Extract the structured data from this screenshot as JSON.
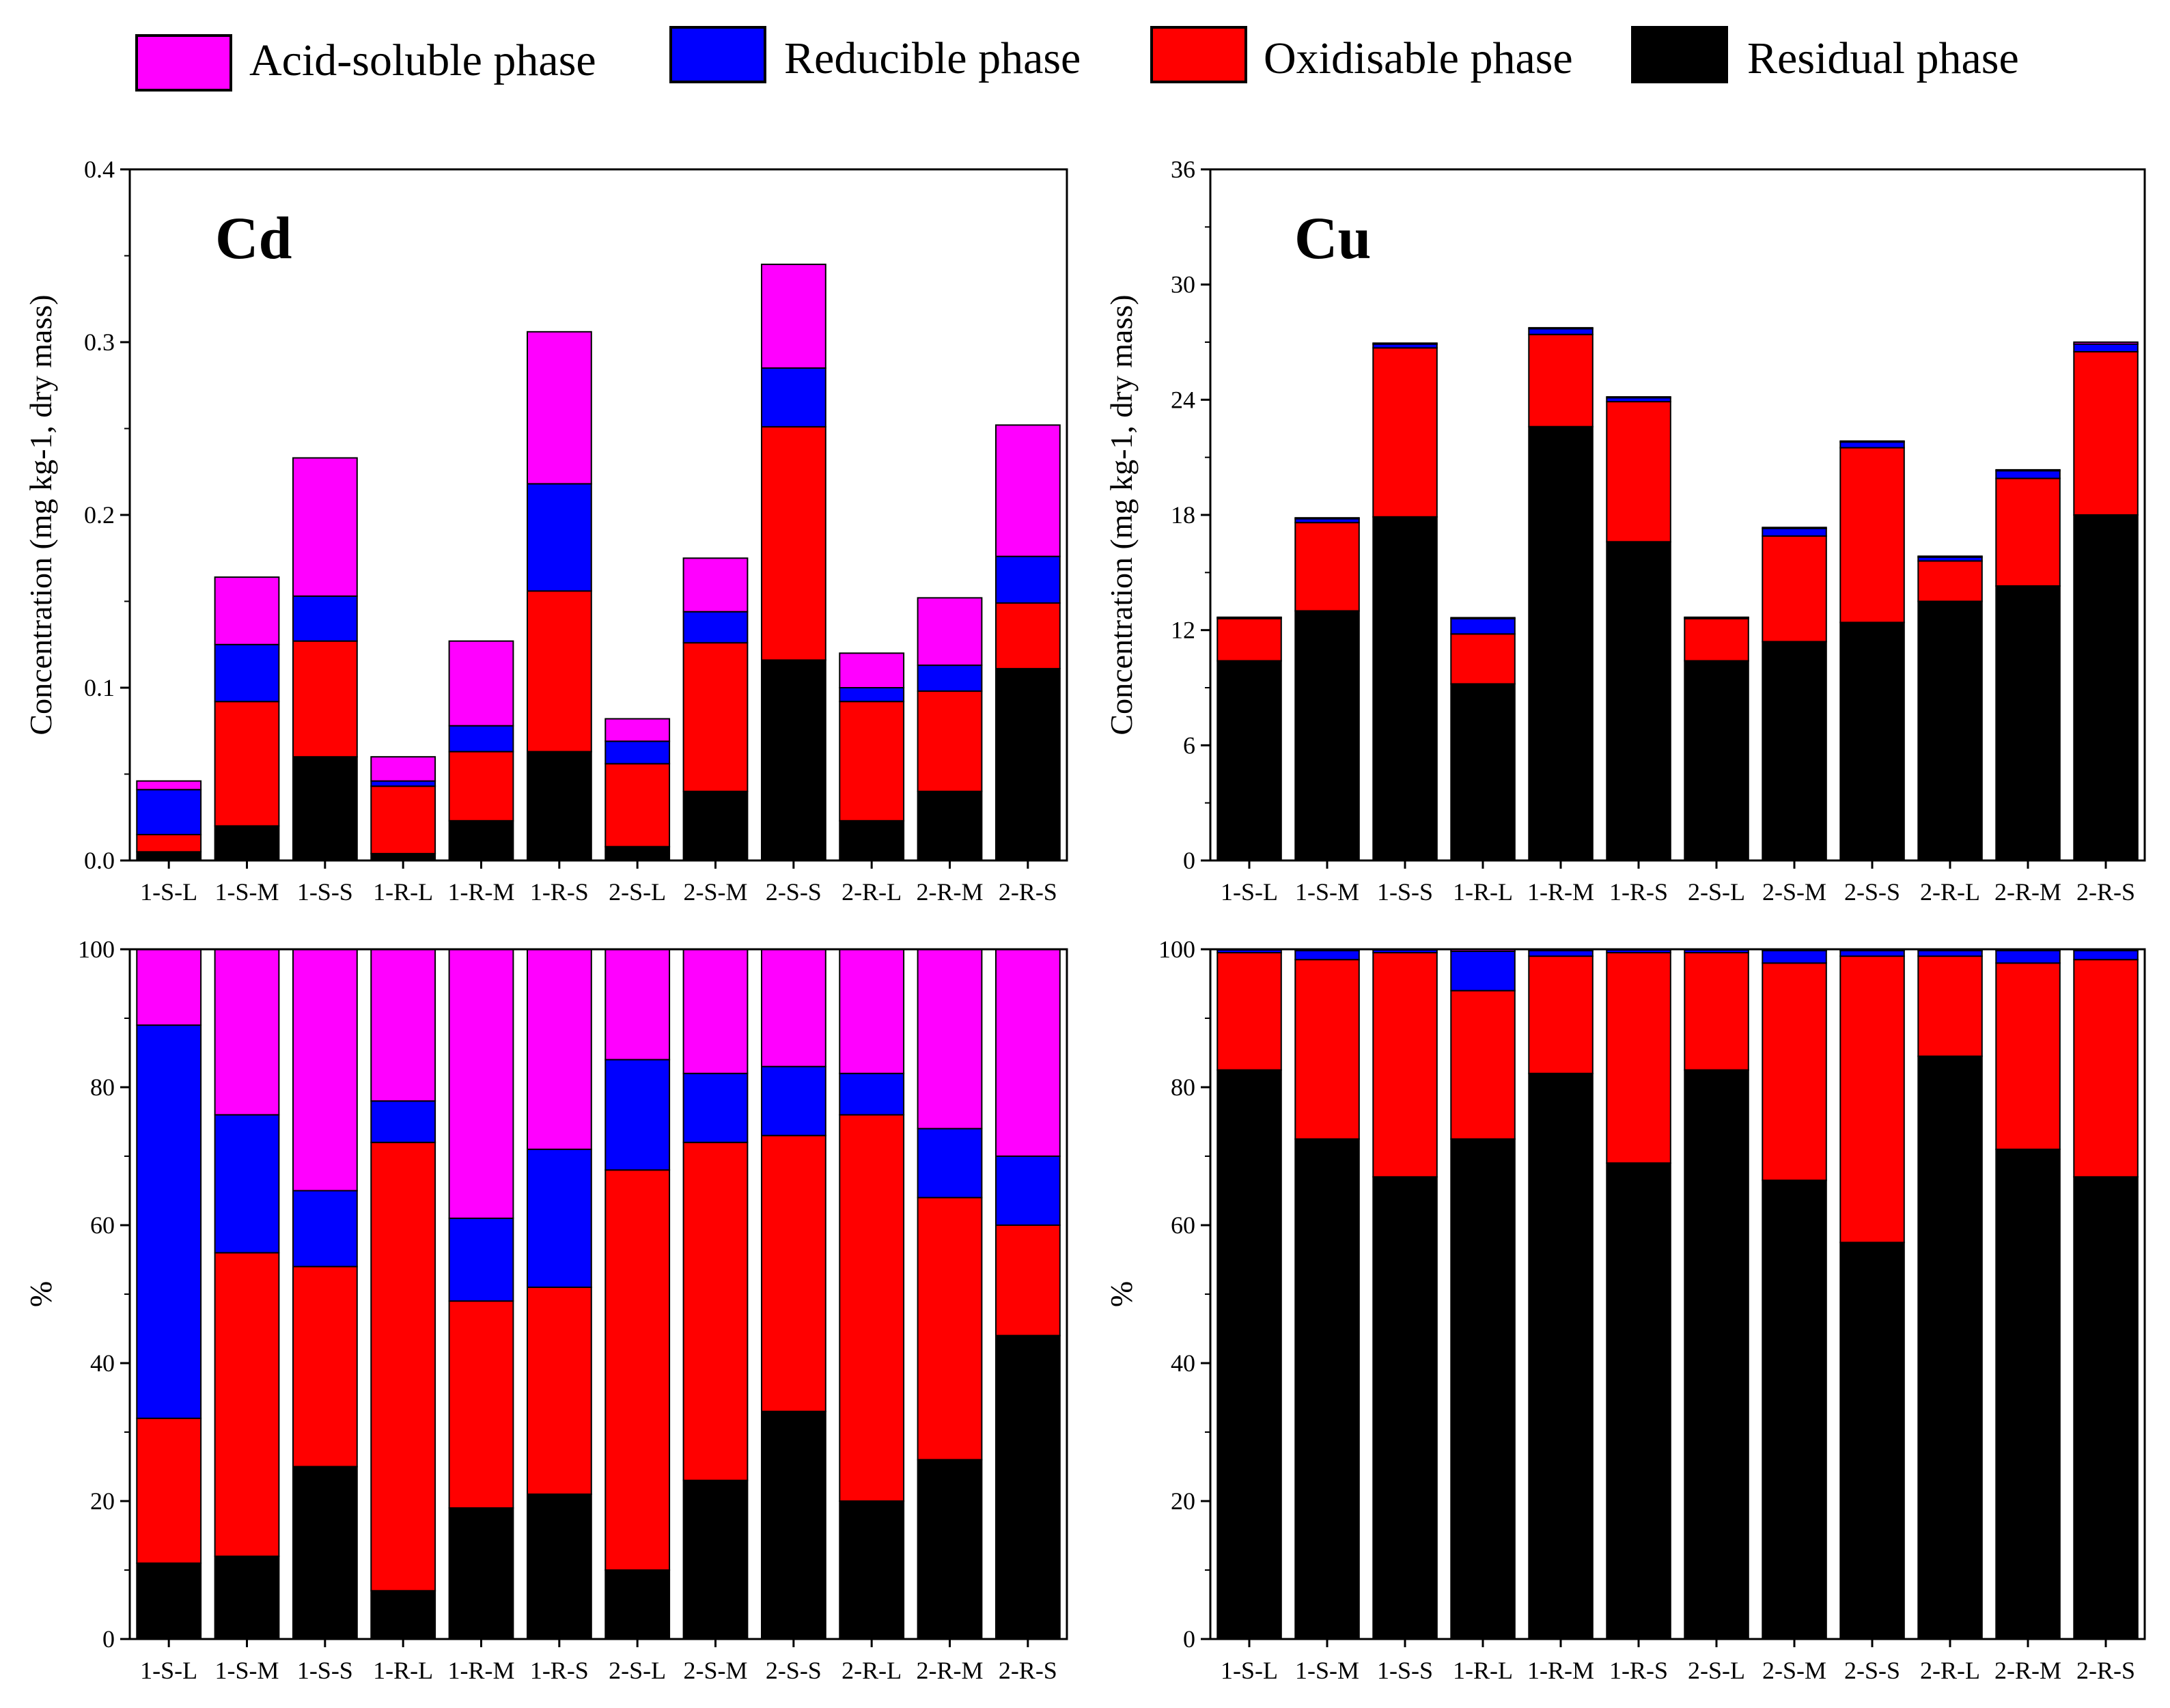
{
  "legend": [
    {
      "key": "acid",
      "label": "Acid-soluble phase",
      "color": "#ff00ff"
    },
    {
      "key": "reducible",
      "label": "Reducible phase",
      "color": "#0000ff"
    },
    {
      "key": "oxidisable",
      "label": "Oxidisable phase",
      "color": "#ff0000"
    },
    {
      "key": "residual",
      "label": "Residual phase",
      "color": "#000000"
    }
  ],
  "chart_data": [
    {
      "id": "cd-conc",
      "type": "bar",
      "stacked": true,
      "title": "Cd",
      "ylabel": "Concentration (mg kg-1, dry mass)",
      "ylim": [
        0,
        0.4
      ],
      "yticks": [
        "0.0",
        "0.1",
        "0.2",
        "0.3",
        "0.4"
      ],
      "categories": [
        "1-S-L",
        "1-S-M",
        "1-S-S",
        "1-R-L",
        "1-R-M",
        "1-R-S",
        "2-S-L",
        "2-S-M",
        "2-S-S",
        "2-R-L",
        "2-R-M",
        "2-R-S"
      ],
      "series": [
        {
          "name": "Residual phase",
          "values": [
            0.005,
            0.02,
            0.06,
            0.004,
            0.023,
            0.063,
            0.008,
            0.04,
            0.116,
            0.023,
            0.04,
            0.111
          ]
        },
        {
          "name": "Oxidisable phase",
          "values": [
            0.01,
            0.072,
            0.067,
            0.039,
            0.04,
            0.093,
            0.048,
            0.086,
            0.135,
            0.069,
            0.058,
            0.038
          ]
        },
        {
          "name": "Reducible phase",
          "values": [
            0.026,
            0.033,
            0.026,
            0.003,
            0.015,
            0.062,
            0.013,
            0.018,
            0.034,
            0.008,
            0.015,
            0.027
          ]
        },
        {
          "name": "Acid-soluble phase",
          "values": [
            0.005,
            0.039,
            0.08,
            0.014,
            0.049,
            0.088,
            0.013,
            0.031,
            0.06,
            0.02,
            0.039,
            0.076
          ]
        }
      ]
    },
    {
      "id": "cu-conc",
      "type": "bar",
      "stacked": true,
      "title": "Cu",
      "ylabel": "Concentration (mg kg-1, dry mass)",
      "ylim": [
        0,
        36
      ],
      "yticks": [
        "0",
        "6",
        "12",
        "18",
        "24",
        "30",
        "36"
      ],
      "categories": [
        "1-S-L",
        "1-S-M",
        "1-S-S",
        "1-R-L",
        "1-R-M",
        "1-R-S",
        "2-S-L",
        "2-S-M",
        "2-S-S",
        "2-R-L",
        "2-R-M",
        "2-R-S"
      ],
      "series": [
        {
          "name": "Residual phase",
          "values": [
            10.4,
            13.0,
            17.9,
            9.2,
            22.6,
            16.6,
            10.4,
            11.4,
            12.4,
            13.5,
            14.3,
            18.0
          ]
        },
        {
          "name": "Oxidisable phase",
          "values": [
            2.2,
            4.6,
            8.8,
            2.6,
            4.8,
            7.3,
            2.2,
            5.5,
            9.1,
            2.1,
            5.6,
            8.5
          ]
        },
        {
          "name": "Reducible phase",
          "values": [
            0.05,
            0.2,
            0.2,
            0.8,
            0.3,
            0.2,
            0.05,
            0.4,
            0.3,
            0.2,
            0.4,
            0.4
          ]
        },
        {
          "name": "Acid-soluble phase",
          "values": [
            0.02,
            0.05,
            0.05,
            0.05,
            0.05,
            0.05,
            0.02,
            0.05,
            0.05,
            0.05,
            0.05,
            0.1
          ]
        }
      ]
    },
    {
      "id": "cd-pct",
      "type": "bar",
      "stacked": true,
      "title": "",
      "ylabel": "%",
      "ylim": [
        0,
        100
      ],
      "yticks": [
        "0",
        "20",
        "40",
        "60",
        "80",
        "100"
      ],
      "categories": [
        "1-S-L",
        "1-S-M",
        "1-S-S",
        "1-R-L",
        "1-R-M",
        "1-R-S",
        "2-S-L",
        "2-S-M",
        "2-S-S",
        "2-R-L",
        "2-R-M",
        "2-R-S"
      ],
      "series": [
        {
          "name": "Residual phase",
          "values": [
            11,
            12,
            25,
            7,
            19,
            21,
            10,
            23,
            33,
            20,
            26,
            44
          ]
        },
        {
          "name": "Oxidisable phase",
          "values": [
            21,
            44,
            29,
            65,
            30,
            30,
            58,
            49,
            40,
            56,
            38,
            16
          ]
        },
        {
          "name": "Reducible phase",
          "values": [
            57,
            20,
            11,
            6,
            12,
            20,
            16,
            10,
            10,
            6,
            10,
            10
          ]
        },
        {
          "name": "Acid-soluble phase",
          "values": [
            11,
            24,
            35,
            22,
            39,
            29,
            16,
            18,
            17,
            18,
            26,
            30
          ]
        }
      ]
    },
    {
      "id": "cu-pct",
      "type": "bar",
      "stacked": true,
      "title": "",
      "ylabel": "%",
      "ylim": [
        0,
        100
      ],
      "yticks": [
        "0",
        "20",
        "40",
        "60",
        "80",
        "100"
      ],
      "categories": [
        "1-S-L",
        "1-S-M",
        "1-S-S",
        "1-R-L",
        "1-R-M",
        "1-R-S",
        "2-S-L",
        "2-S-M",
        "2-S-S",
        "2-R-L",
        "2-R-M",
        "2-R-S"
      ],
      "series": [
        {
          "name": "Residual phase",
          "values": [
            82.5,
            72.5,
            67,
            72.5,
            82,
            69,
            82.5,
            66.5,
            57.5,
            84.5,
            71,
            67
          ]
        },
        {
          "name": "Oxidisable phase",
          "values": [
            17,
            26,
            32.5,
            21.5,
            17,
            30.5,
            17,
            31.5,
            41.5,
            14.5,
            27,
            31.5
          ]
        },
        {
          "name": "Reducible phase",
          "values": [
            0.4,
            1.3,
            0.4,
            5.7,
            0.8,
            0.4,
            0.4,
            1.8,
            0.8,
            0.8,
            1.8,
            1.3
          ]
        },
        {
          "name": "Acid-soluble phase",
          "values": [
            0.1,
            0.2,
            0.1,
            0.3,
            0.2,
            0.1,
            0.1,
            0.2,
            0.2,
            0.2,
            0.2,
            0.2
          ]
        }
      ]
    }
  ]
}
